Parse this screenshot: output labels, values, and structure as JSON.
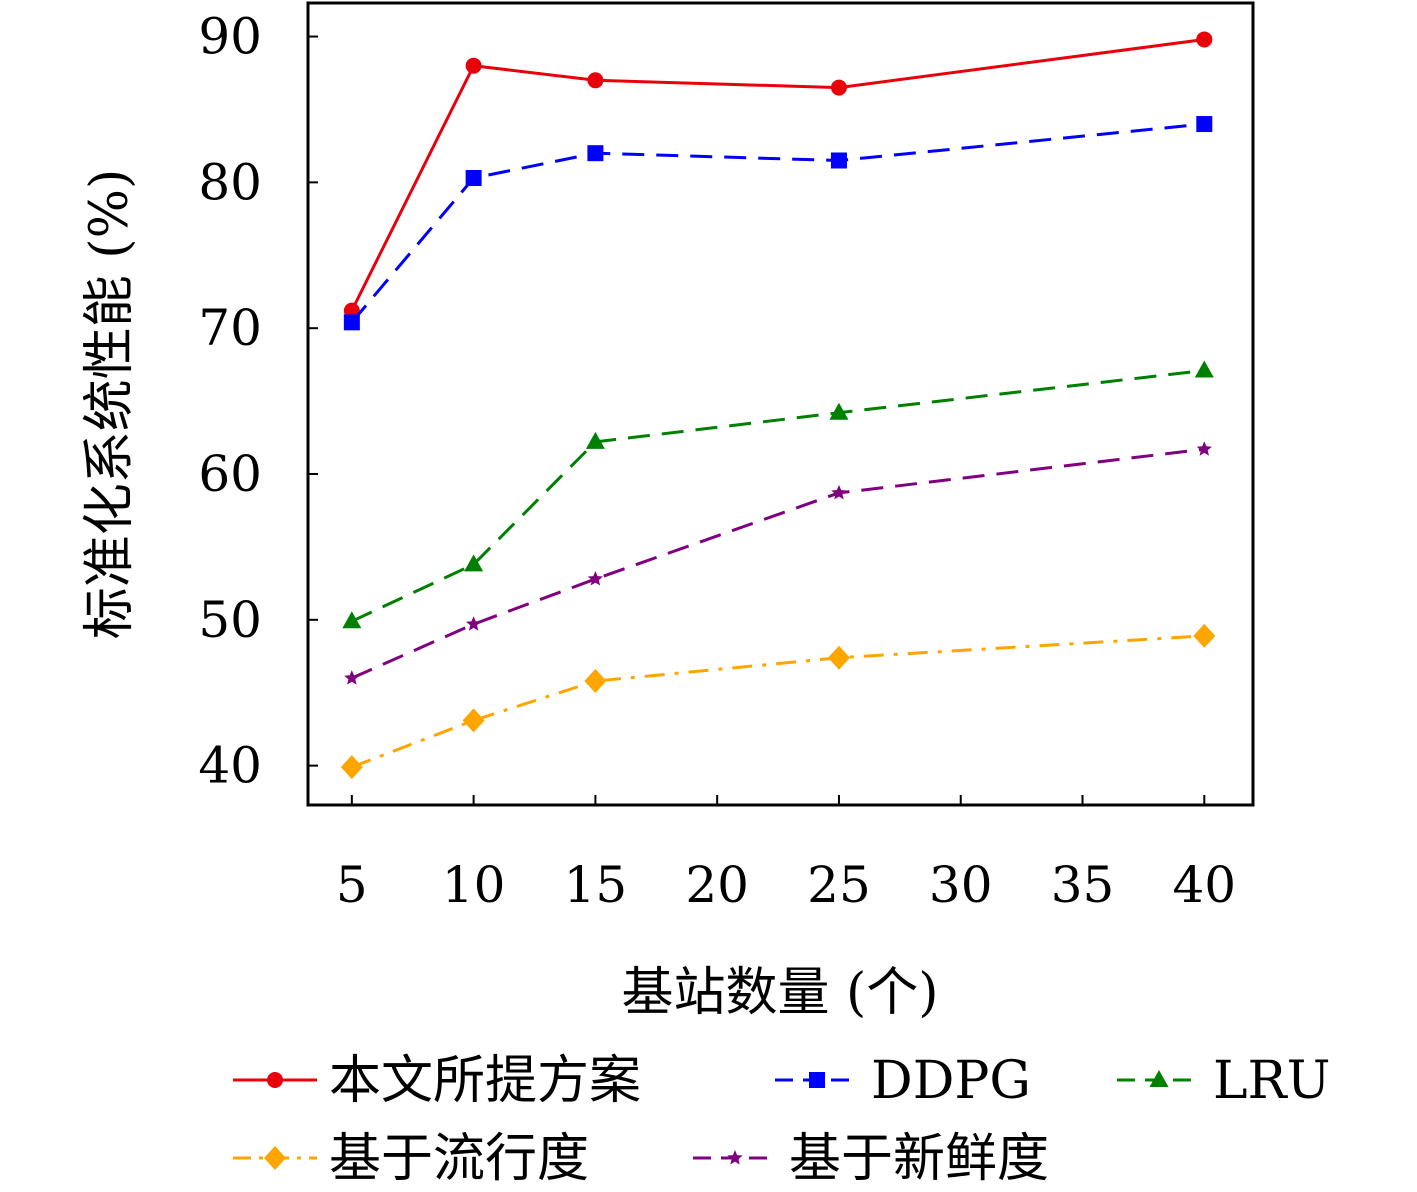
{
  "chart_data": {
    "type": "line",
    "title": "",
    "xlabel": "基站数量 (个)",
    "ylabel": "标准化系统性能 (%)",
    "xlim": [
      3.2,
      42.0
    ],
    "ylim": [
      37.3,
      92.3
    ],
    "xticks": [
      5,
      10,
      15,
      20,
      25,
      30,
      35,
      40
    ],
    "yticks": [
      40,
      50,
      60,
      70,
      80,
      90
    ],
    "x": [
      5,
      10,
      15,
      25,
      40
    ],
    "grid": false,
    "legend_position": "bottom",
    "series": [
      {
        "name": "本文所提方案",
        "values": [
          71.2,
          88.0,
          87.0,
          86.5,
          89.8
        ],
        "color": "#e8000b",
        "marker": "circle",
        "dash": "solid"
      },
      {
        "name": "DDPG",
        "values": [
          70.4,
          80.3,
          82.0,
          81.5,
          84.0
        ],
        "color": "#0000ff",
        "marker": "square",
        "dash": "dashed"
      },
      {
        "name": "LRU",
        "values": [
          49.9,
          53.8,
          62.2,
          64.2,
          67.1
        ],
        "color": "#008000",
        "marker": "triangle",
        "dash": "dashed"
      },
      {
        "name": "基于流行度",
        "values": [
          39.9,
          43.1,
          45.8,
          47.4,
          48.9
        ],
        "color": "#ffa500",
        "marker": "diamond",
        "dash": "dashdot"
      },
      {
        "name": "基于新鲜度",
        "values": [
          46.0,
          49.7,
          52.8,
          58.7,
          61.7
        ],
        "color": "#800080",
        "marker": "star",
        "dash": "dashed"
      }
    ]
  }
}
